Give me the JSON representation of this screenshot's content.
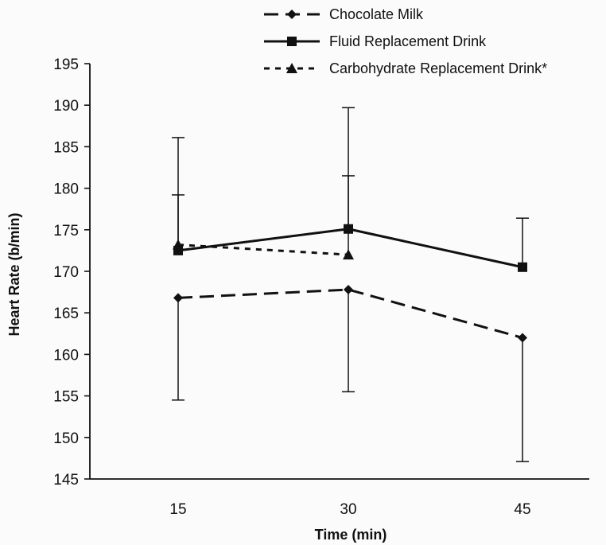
{
  "chart_data": {
    "type": "line",
    "title": "",
    "xlabel": "Time (min)",
    "ylabel": "Heart Rate (b/min)",
    "categories": [
      "15",
      "30",
      "45"
    ],
    "yticks": [
      "145",
      "150",
      "155",
      "160",
      "165",
      "170",
      "175",
      "180",
      "185",
      "190",
      "195"
    ],
    "ylim": [
      145,
      195
    ],
    "grid": false,
    "legend_position": "top-right",
    "series": [
      {
        "name": "Chocolate Milk",
        "line_style": "long-dash",
        "marker": "diamond",
        "color": "#111111",
        "values": [
          166.8,
          167.8,
          162.0
        ],
        "error_upper": [
          null,
          null,
          null
        ],
        "error_lower": [
          154.5,
          155.5,
          147.1
        ]
      },
      {
        "name": "Fluid Replacement Drink",
        "line_style": "solid",
        "marker": "square",
        "color": "#111111",
        "values": [
          172.5,
          175.1,
          170.5
        ],
        "error_upper": [
          186.1,
          189.7,
          176.4
        ],
        "error_lower": [
          null,
          null,
          null
        ]
      },
      {
        "name": "Carbohydrate Replacement Drink*",
        "line_style": "short-dash",
        "marker": "triangle",
        "color": "#111111",
        "values": [
          173.2,
          172.0,
          null
        ],
        "error_upper": [
          179.2,
          181.5,
          null
        ],
        "error_lower": [
          null,
          null,
          null
        ]
      }
    ]
  }
}
